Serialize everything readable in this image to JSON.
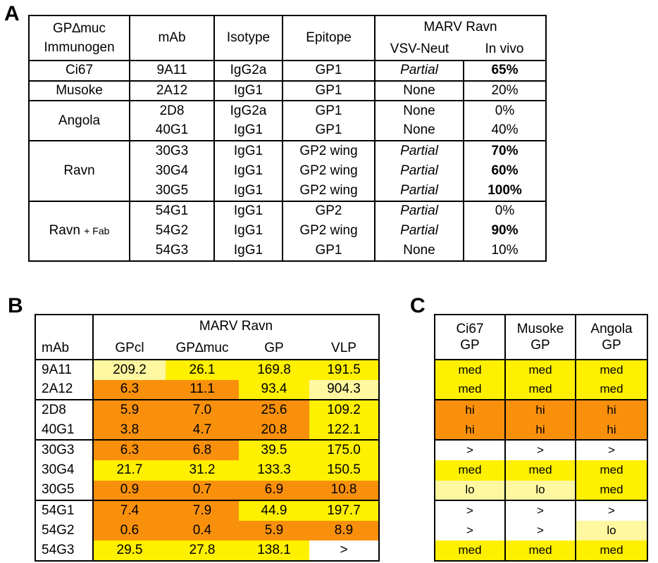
{
  "colors": {
    "orange": "#f9900c",
    "yellow": "#fff000",
    "light_yellow": "#fff8a0",
    "white": "#ffffff"
  },
  "panel_labels": {
    "a": "A",
    "b": "B",
    "c": "C"
  },
  "table_a": {
    "headers": {
      "immunogen_1": "GP∆muc",
      "immunogen_2": "Immunogen",
      "mab": "mAb",
      "isotype": "Isotype",
      "epitope": "Epitope",
      "marv_ravn": "MARV Ravn",
      "vsv_neut": "VSV-Neut",
      "in_vivo": "In vivo"
    },
    "groups": [
      {
        "immunogen": "Ci67",
        "immunogen_suffix": "",
        "rows": [
          {
            "mab": "9A11",
            "isotype": "IgG2a",
            "epitope": "GP1",
            "vsv_neut": "Partial",
            "in_vivo": "65%",
            "in_vivo_bold": true
          }
        ]
      },
      {
        "immunogen": "Musoke",
        "immunogen_suffix": "",
        "rows": [
          {
            "mab": "2A12",
            "isotype": "IgG1",
            "epitope": "GP1",
            "vsv_neut": "None",
            "in_vivo": "20%",
            "in_vivo_bold": false
          }
        ]
      },
      {
        "immunogen": "Angola",
        "immunogen_suffix": "",
        "rows": [
          {
            "mab": "2D8",
            "isotype": "IgG2a",
            "epitope": "GP1",
            "vsv_neut": "None",
            "in_vivo": "0%",
            "in_vivo_bold": false
          },
          {
            "mab": "40G1",
            "isotype": "IgG1",
            "epitope": "GP1",
            "vsv_neut": "None",
            "in_vivo": "40%",
            "in_vivo_bold": false
          }
        ]
      },
      {
        "immunogen": "Ravn",
        "immunogen_suffix": "",
        "rows": [
          {
            "mab": "30G3",
            "isotype": "IgG1",
            "epitope": "GP2 wing",
            "vsv_neut": "Partial",
            "in_vivo": "70%",
            "in_vivo_bold": true
          },
          {
            "mab": "30G4",
            "isotype": "IgG1",
            "epitope": "GP2 wing",
            "vsv_neut": "Partial",
            "in_vivo": "60%",
            "in_vivo_bold": true
          },
          {
            "mab": "30G5",
            "isotype": "IgG1",
            "epitope": "GP2 wing",
            "vsv_neut": "Partial",
            "in_vivo": "100%",
            "in_vivo_bold": true
          }
        ]
      },
      {
        "immunogen": "Ravn",
        "immunogen_suffix": "+ Fab",
        "rows": [
          {
            "mab": "54G1",
            "isotype": "IgG1",
            "epitope": "GP2",
            "vsv_neut": "Partial",
            "in_vivo": "0%",
            "in_vivo_bold": false
          },
          {
            "mab": "54G2",
            "isotype": "IgG1",
            "epitope": "GP2 wing",
            "vsv_neut": "Partial",
            "in_vivo": "90%",
            "in_vivo_bold": true
          },
          {
            "mab": "54G3",
            "isotype": "IgG1",
            "epitope": "GP1",
            "vsv_neut": "None",
            "in_vivo": "10%",
            "in_vivo_bold": false
          }
        ]
      }
    ]
  },
  "table_b": {
    "headers": {
      "group": "MARV Ravn",
      "mab": "mAb",
      "cols": [
        "GPcl",
        "GP∆muc",
        "GP",
        "VLP"
      ]
    },
    "rows": [
      {
        "mab": "9A11",
        "cells": [
          {
            "v": "209.2",
            "c": "lt"
          },
          {
            "v": "26.1",
            "c": "ye"
          },
          {
            "v": "169.8",
            "c": "ye"
          },
          {
            "v": "191.5",
            "c": "ye"
          }
        ]
      },
      {
        "mab": "2A12",
        "cells": [
          {
            "v": "6.3",
            "c": "or"
          },
          {
            "v": "11.1",
            "c": "or"
          },
          {
            "v": "93.4",
            "c": "ye"
          },
          {
            "v": "904.3",
            "c": "lt"
          }
        ]
      },
      {
        "mab": "2D8",
        "cells": [
          {
            "v": "5.9",
            "c": "or"
          },
          {
            "v": "7.0",
            "c": "or"
          },
          {
            "v": "25.6",
            "c": "or"
          },
          {
            "v": "109.2",
            "c": "ye"
          }
        ]
      },
      {
        "mab": "40G1",
        "cells": [
          {
            "v": "3.8",
            "c": "or"
          },
          {
            "v": "4.7",
            "c": "or"
          },
          {
            "v": "20.8",
            "c": "or"
          },
          {
            "v": "122.1",
            "c": "ye"
          }
        ]
      },
      {
        "mab": "30G3",
        "cells": [
          {
            "v": "6.3",
            "c": "or"
          },
          {
            "v": "6.8",
            "c": "or"
          },
          {
            "v": "39.5",
            "c": "ye"
          },
          {
            "v": "175.0",
            "c": "ye"
          }
        ]
      },
      {
        "mab": "30G4",
        "cells": [
          {
            "v": "21.7",
            "c": "ye"
          },
          {
            "v": "31.2",
            "c": "ye"
          },
          {
            "v": "133.3",
            "c": "ye"
          },
          {
            "v": "150.5",
            "c": "ye"
          }
        ]
      },
      {
        "mab": "30G5",
        "cells": [
          {
            "v": "0.9",
            "c": "or"
          },
          {
            "v": "0.7",
            "c": "or"
          },
          {
            "v": "6.9",
            "c": "or"
          },
          {
            "v": "10.8",
            "c": "or"
          }
        ]
      },
      {
        "mab": "54G1",
        "cells": [
          {
            "v": "7.4",
            "c": "or"
          },
          {
            "v": "7.9",
            "c": "or"
          },
          {
            "v": "44.9",
            "c": "ye"
          },
          {
            "v": "197.7",
            "c": "ye"
          }
        ]
      },
      {
        "mab": "54G2",
        "cells": [
          {
            "v": "0.6",
            "c": "or"
          },
          {
            "v": "0.4",
            "c": "or"
          },
          {
            "v": "5.9",
            "c": "or"
          },
          {
            "v": "8.9",
            "c": "or"
          }
        ]
      },
      {
        "mab": "54G3",
        "cells": [
          {
            "v": "29.5",
            "c": "ye"
          },
          {
            "v": "27.8",
            "c": "ye"
          },
          {
            "v": "138.1",
            "c": "ye"
          },
          {
            "v": ">",
            "c": "wh"
          }
        ]
      }
    ]
  },
  "table_c": {
    "headers": [
      {
        "line1": "Ci67",
        "line2": "GP"
      },
      {
        "line1": "Musoke",
        "line2": "GP"
      },
      {
        "line1": "Angola",
        "line2": "GP"
      }
    ],
    "rows": [
      [
        {
          "v": "med",
          "c": "ye"
        },
        {
          "v": "med",
          "c": "ye"
        },
        {
          "v": "med",
          "c": "ye"
        }
      ],
      [
        {
          "v": "med",
          "c": "ye"
        },
        {
          "v": "med",
          "c": "ye"
        },
        {
          "v": "med",
          "c": "ye"
        }
      ],
      [
        {
          "v": "hi",
          "c": "or"
        },
        {
          "v": "hi",
          "c": "or"
        },
        {
          "v": "hi",
          "c": "or"
        }
      ],
      [
        {
          "v": "hi",
          "c": "or"
        },
        {
          "v": "hi",
          "c": "or"
        },
        {
          "v": "hi",
          "c": "or"
        }
      ],
      [
        {
          "v": ">",
          "c": "wh"
        },
        {
          "v": ">",
          "c": "wh"
        },
        {
          "v": ">",
          "c": "wh"
        }
      ],
      [
        {
          "v": "med",
          "c": "ye"
        },
        {
          "v": "med",
          "c": "ye"
        },
        {
          "v": "med",
          "c": "ye"
        }
      ],
      [
        {
          "v": "lo",
          "c": "lt"
        },
        {
          "v": "lo",
          "c": "lt"
        },
        {
          "v": "med",
          "c": "ye"
        }
      ],
      [
        {
          "v": ">",
          "c": "wh"
        },
        {
          "v": ">",
          "c": "wh"
        },
        {
          "v": ">",
          "c": "wh"
        }
      ],
      [
        {
          "v": ">",
          "c": "wh"
        },
        {
          "v": ">",
          "c": "wh"
        },
        {
          "v": "lo",
          "c": "lt"
        }
      ],
      [
        {
          "v": "med",
          "c": "ye"
        },
        {
          "v": "med",
          "c": "ye"
        },
        {
          "v": "med",
          "c": "ye"
        }
      ]
    ]
  }
}
